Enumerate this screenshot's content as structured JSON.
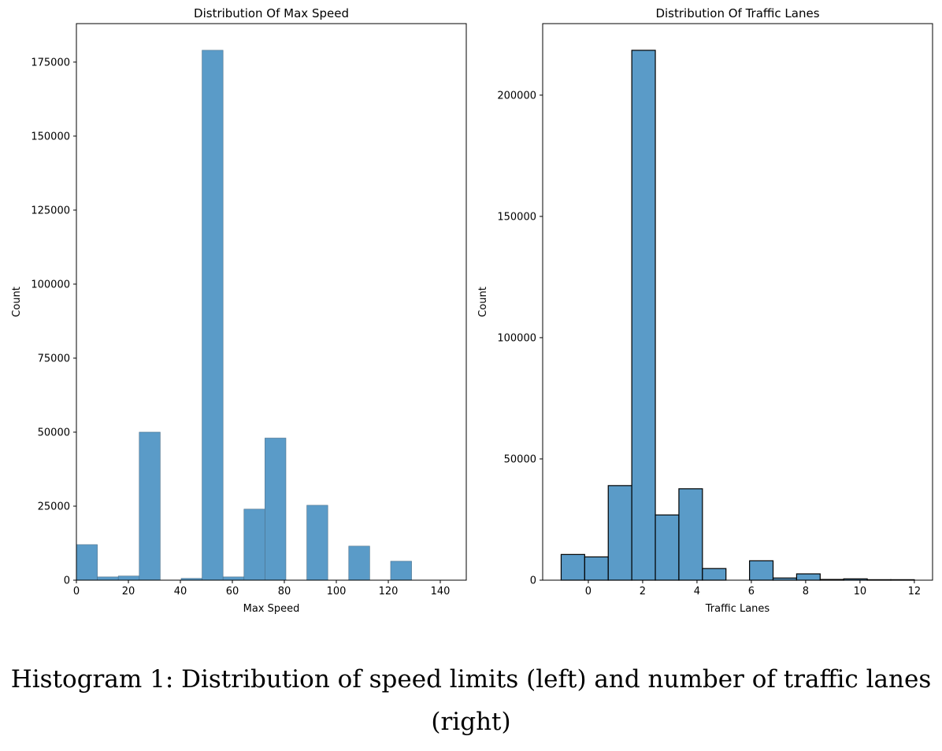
{
  "chart_data": [
    {
      "type": "bar",
      "title": "Distribution Of Max Speed",
      "xlabel": "Max Speed",
      "ylabel": "Count",
      "xlim": [
        0,
        150
      ],
      "ylim": [
        0,
        188000
      ],
      "xticks": [
        0,
        20,
        40,
        60,
        80,
        100,
        120,
        140
      ],
      "yticks": [
        0,
        25000,
        50000,
        75000,
        100000,
        125000,
        150000,
        175000
      ],
      "bin_start": 0,
      "bin_width": 8.06,
      "values": [
        12000,
        1100,
        1400,
        50000,
        0,
        600,
        179000,
        1100,
        24000,
        48000,
        0,
        25300,
        0,
        11500,
        0,
        6400,
        0,
        0
      ],
      "bar_color": "#5a9bc8",
      "edge_color": "#4a6f8a"
    },
    {
      "type": "bar",
      "title": "Distribution Of Traffic Lanes",
      "xlabel": "Traffic Lanes",
      "ylabel": "Count",
      "xlim": [
        -1.68,
        12.67
      ],
      "ylim": [
        0,
        229500
      ],
      "xticks": [
        0,
        2,
        4,
        6,
        8,
        10,
        12
      ],
      "yticks": [
        0,
        50000,
        100000,
        150000,
        200000
      ],
      "bin_start": -1,
      "bin_width": 0.8667,
      "values": [
        10600,
        9600,
        39000,
        218500,
        26900,
        37700,
        4800,
        0,
        8000,
        900,
        2600,
        300,
        550,
        200,
        200
      ],
      "bar_color": "#5a9bc8",
      "edge_color": "#000000"
    }
  ],
  "caption": {
    "line1": "Histogram 1: Distribution of speed limits (left) and number of traffic lanes",
    "line2": "(right)"
  }
}
